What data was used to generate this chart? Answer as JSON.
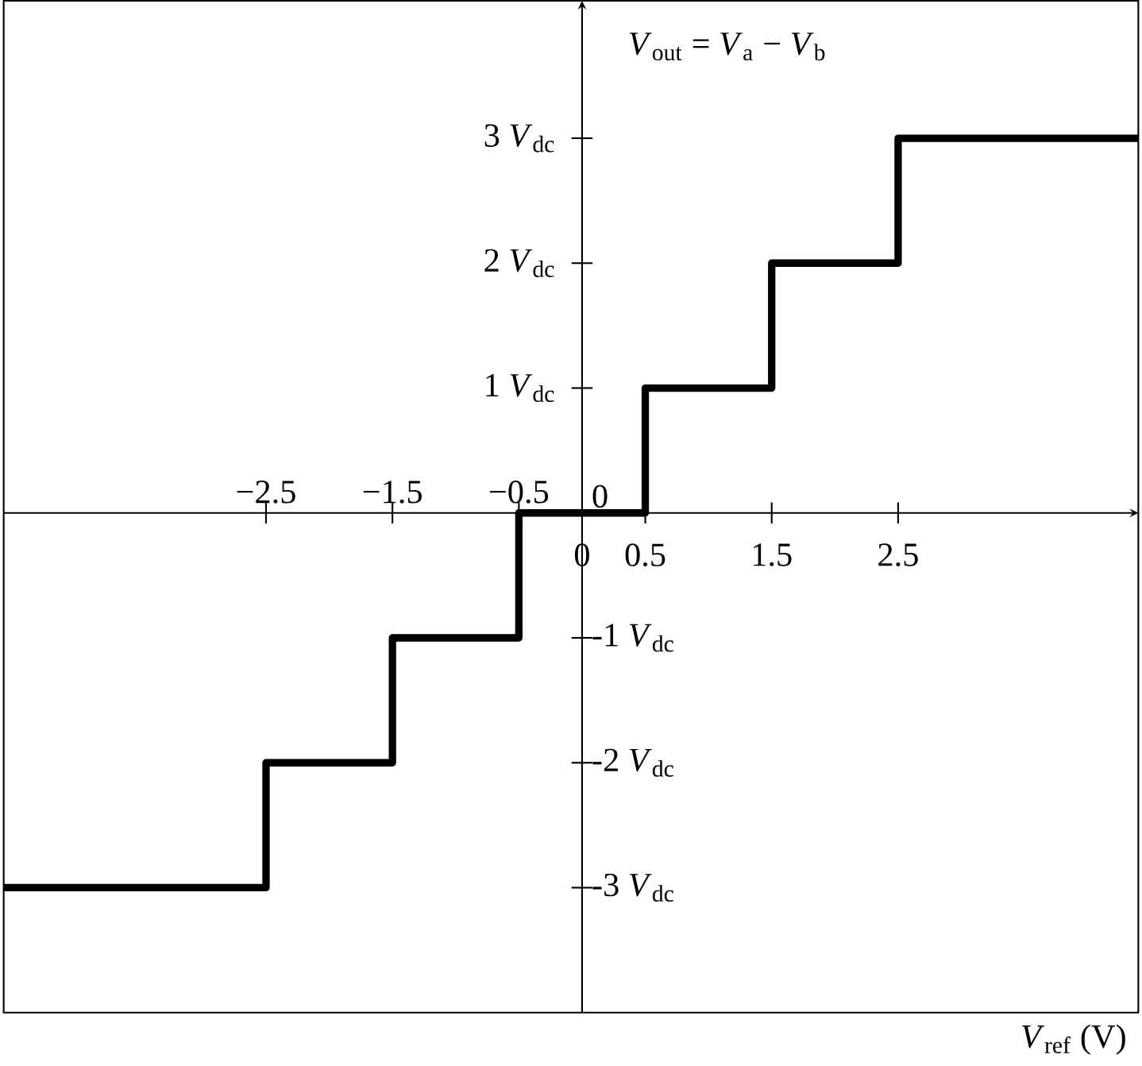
{
  "chart_data": {
    "type": "step",
    "annotations": [
      "*V*$_{out}$ = *V*$_{a}$ − *V*$_{b}$"
    ],
    "xlabel": "*V*$_{ref}$ (V)",
    "x": [
      -4.575,
      -2.5,
      -1.5,
      -0.5,
      0.5,
      1.5,
      2.5,
      4.4
    ],
    "values": [
      -3,
      -2,
      -1,
      0,
      1,
      2,
      3,
      3
    ],
    "color": "#000000",
    "xlim": [
      -4.575,
      4.4
    ],
    "ylim": [
      -4.0,
      4.1
    ],
    "x2lim": [
      -4.575,
      4.4
    ],
    "y2lim": [
      -4.0,
      4.1
    ],
    "xticks": [
      0,
      0.5,
      1.5,
      2.5
    ],
    "x2ticks": [
      {
        "value": -2.5,
        "label": "−2.5"
      },
      {
        "value": -1.5,
        "label": "−1.5"
      },
      {
        "value": -0.5,
        "label": "−0.5"
      }
    ],
    "yticks": [
      {
        "value": 1,
        "label": "1 *V*$_{dc}$"
      },
      {
        "value": 2,
        "label": "2 *V*$_{dc}$"
      },
      {
        "value": 3,
        "label": "3 *V*$_{dc}$"
      }
    ],
    "y2ticks": [
      {
        "value": -3,
        "label": "-3 *V*$_{dc}$"
      },
      {
        "value": -2,
        "label": "-2 *V*$_{dc}$"
      },
      {
        "value": -1,
        "label": "-1 *V*$_{dc}$"
      },
      0
    ]
  }
}
